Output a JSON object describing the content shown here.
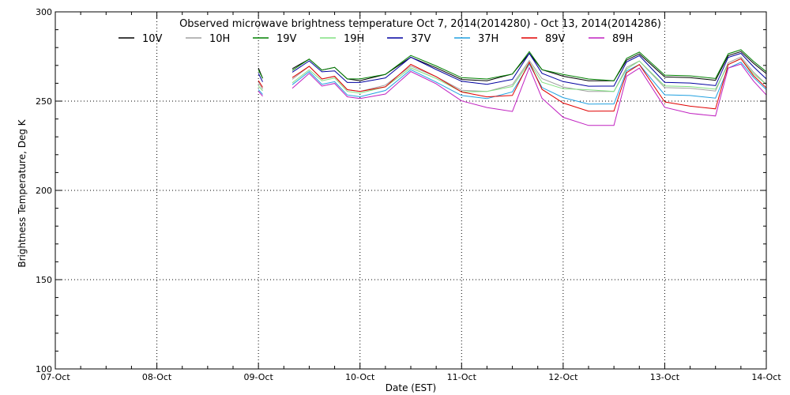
{
  "chart_data": {
    "type": "line",
    "title": "Observed microwave brightness temperature Oct  7, 2014(2014280) - Oct 13, 2014(2014286)",
    "xlabel": "Date (EST)",
    "ylabel": "Brightness Temperature, Deg K",
    "xlim": [
      "2014-10-07",
      "2014-10-14"
    ],
    "ylim": [
      100,
      300
    ],
    "x_ticks": [
      "07-Oct",
      "08-Oct",
      "09-Oct",
      "10-Oct",
      "11-Oct",
      "12-Oct",
      "13-Oct",
      "14-Oct"
    ],
    "y_ticks": [
      100,
      150,
      200,
      250,
      300
    ],
    "grid": "dotted, at major ticks",
    "legend": "top, single row",
    "series": [
      {
        "name": "10V",
        "color": "#000000",
        "x": [
          "2014-10-09 00:00",
          "2014-10-09 01:00",
          "2014-10-09 08:00",
          "2014-10-09 12:00",
          "2014-10-09 15:00",
          "2014-10-09 18:00",
          "2014-10-09 21:00",
          "2014-10-10 00:00",
          "2014-10-10 06:00",
          "2014-10-10 12:00",
          "2014-10-10 18:00",
          "2014-10-11 00:00",
          "2014-10-11 06:00",
          "2014-10-11 12:00",
          "2014-10-11 16:00",
          "2014-10-11 19:00",
          "2014-10-12 00:00",
          "2014-10-12 06:00",
          "2014-10-12 12:00",
          "2014-10-12 15:00",
          "2014-10-12 18:00",
          "2014-10-13 00:00",
          "2014-10-13 06:00",
          "2014-10-13 12:00",
          "2014-10-13 15:00",
          "2014-10-13 18:00",
          "2014-10-13 21:00",
          "2014-10-14 00:00"
        ],
        "y": [
          270,
          263,
          267,
          272,
          267,
          270,
          264,
          262,
          264,
          273,
          268,
          263,
          263,
          266,
          276,
          266,
          263,
          262,
          263,
          274,
          276,
          262,
          262,
          262,
          277,
          279,
          271,
          264
        ]
      },
      {
        "name": "10H",
        "color": "#a0a0a0",
        "x": [
          "2014-10-09 00:00",
          "2014-10-09 01:00",
          "2014-10-09 08:00",
          "2014-10-09 12:00",
          "2014-10-09 15:00",
          "2014-10-09 18:00",
          "2014-10-09 21:00",
          "2014-10-10 00:00",
          "2014-10-10 06:00",
          "2014-10-10 12:00",
          "2014-10-10 18:00",
          "2014-10-11 00:00",
          "2014-10-11 06:00",
          "2014-10-11 12:00",
          "2014-10-11 16:00",
          "2014-10-11 19:00",
          "2014-10-12 00:00",
          "2014-10-12 06:00",
          "2014-10-12 12:00",
          "2014-10-12 15:00",
          "2014-10-12 18:00",
          "2014-10-13 00:00",
          "2014-10-13 06:00",
          "2014-10-13 12:00",
          "2014-10-13 15:00",
          "2014-10-13 18:00",
          "2014-10-13 21:00",
          "2014-10-14 00:00"
        ],
        "y": [
          262,
          257,
          261,
          268,
          262,
          265,
          258,
          256,
          258,
          268,
          263,
          257,
          257,
          260,
          272,
          261,
          257,
          256,
          257,
          270,
          272,
          256,
          256,
          256,
          273,
          276,
          266,
          258
        ]
      },
      {
        "name": "19V",
        "color": "#008000",
        "x": [
          "2014-10-09 00:00",
          "2014-10-09 01:00",
          "2014-10-09 08:00",
          "2014-10-09 12:00",
          "2014-10-09 15:00",
          "2014-10-09 18:00",
          "2014-10-09 21:00",
          "2014-10-10 00:00",
          "2014-10-10 06:00",
          "2014-10-10 12:00",
          "2014-10-10 18:00",
          "2014-10-11 00:00",
          "2014-10-11 06:00",
          "2014-10-11 12:00",
          "2014-10-11 16:00",
          "2014-10-11 19:00",
          "2014-10-12 00:00",
          "2014-10-12 06:00",
          "2014-10-12 12:00",
          "2014-10-12 15:00",
          "2014-10-12 18:00",
          "2014-10-13 00:00",
          "2014-10-13 06:00",
          "2014-10-13 12:00",
          "2014-10-13 15:00",
          "2014-10-13 18:00",
          "2014-10-13 21:00",
          "2014-10-14 00:00"
        ],
        "y": [
          269,
          263,
          266,
          272,
          267,
          270,
          264,
          263,
          264,
          274,
          269,
          264,
          264,
          266,
          277,
          266,
          264,
          263,
          263,
          275,
          277,
          263,
          263,
          263,
          278,
          280,
          272,
          265
        ]
      },
      {
        "name": "19H",
        "color": "#80e080",
        "x": [
          "2014-10-09 00:00",
          "2014-10-09 01:00",
          "2014-10-09 08:00",
          "2014-10-09 12:00",
          "2014-10-09 15:00",
          "2014-10-09 18:00",
          "2014-10-09 21:00",
          "2014-10-10 00:00",
          "2014-10-10 06:00",
          "2014-10-10 12:00",
          "2014-10-10 18:00",
          "2014-10-11 00:00",
          "2014-10-11 06:00",
          "2014-10-11 12:00",
          "2014-10-11 16:00",
          "2014-10-11 19:00",
          "2014-10-12 00:00",
          "2014-10-12 06:00",
          "2014-10-12 12:00",
          "2014-10-12 15:00",
          "2014-10-12 18:00",
          "2014-10-13 00:00",
          "2014-10-13 06:00",
          "2014-10-13 12:00",
          "2014-10-13 15:00",
          "2014-10-13 18:00",
          "2014-10-13 21:00",
          "2014-10-14 00:00"
        ],
        "y": [
          260,
          256,
          259,
          266,
          261,
          264,
          257,
          255,
          257,
          267,
          262,
          256,
          257,
          259,
          271,
          259,
          256,
          257,
          257,
          269,
          272,
          257,
          257,
          257,
          272,
          275,
          265,
          258
        ]
      },
      {
        "name": "37V",
        "color": "#0000a0",
        "x": [
          "2014-10-09 00:00",
          "2014-10-09 01:00",
          "2014-10-09 08:00",
          "2014-10-09 12:00",
          "2014-10-09 15:00",
          "2014-10-09 18:00",
          "2014-10-09 21:00",
          "2014-10-10 00:00",
          "2014-10-10 06:00",
          "2014-10-10 12:00",
          "2014-10-10 18:00",
          "2014-10-11 00:00",
          "2014-10-11 06:00",
          "2014-10-11 12:00",
          "2014-10-11 16:00",
          "2014-10-11 19:00",
          "2014-10-12 00:00",
          "2014-10-12 06:00",
          "2014-10-12 12:00",
          "2014-10-12 15:00",
          "2014-10-12 18:00",
          "2014-10-13 00:00",
          "2014-10-13 06:00",
          "2014-10-13 12:00",
          "2014-10-13 15:00",
          "2014-10-13 18:00",
          "2014-10-13 21:00",
          "2014-10-14 00:00"
        ],
        "y": [
          267,
          261,
          265,
          271,
          266,
          268,
          262,
          261,
          262,
          273,
          267,
          262,
          261,
          263,
          276,
          264,
          260,
          259,
          260,
          273,
          275,
          259,
          259,
          259,
          276,
          278,
          269,
          261
        ]
      },
      {
        "name": "37H",
        "color": "#20a0e0",
        "x": [
          "2014-10-09 00:00",
          "2014-10-09 01:00",
          "2014-10-09 08:00",
          "2014-10-09 12:00",
          "2014-10-09 15:00",
          "2014-10-09 18:00",
          "2014-10-09 21:00",
          "2014-10-10 00:00",
          "2014-10-10 06:00",
          "2014-10-10 12:00",
          "2014-10-10 18:00",
          "2014-10-11 00:00",
          "2014-10-11 06:00",
          "2014-10-11 12:00",
          "2014-10-11 16:00",
          "2014-10-11 19:00",
          "2014-10-12 00:00",
          "2014-10-12 06:00",
          "2014-10-12 12:00",
          "2014-10-12 15:00",
          "2014-10-12 18:00",
          "2014-10-13 00:00",
          "2014-10-13 06:00",
          "2014-10-13 12:00",
          "2014-10-13 15:00",
          "2014-10-13 18:00",
          "2014-10-13 21:00",
          "2014-10-14 00:00"
        ],
        "y": [
          258,
          254,
          258,
          265,
          259,
          262,
          255,
          253,
          255,
          266,
          260,
          254,
          253,
          256,
          270,
          256,
          251,
          249,
          250,
          268,
          270,
          252,
          252,
          252,
          270,
          273,
          263,
          255
        ]
      },
      {
        "name": "89V",
        "color": "#e00000",
        "x": [
          "2014-10-09 00:00",
          "2014-10-09 01:00",
          "2014-10-09 08:00",
          "2014-10-09 12:00",
          "2014-10-09 15:00",
          "2014-10-09 18:00",
          "2014-10-09 21:00",
          "2014-10-10 00:00",
          "2014-10-10 06:00",
          "2014-10-10 12:00",
          "2014-10-10 18:00",
          "2014-10-11 00:00",
          "2014-10-11 06:00",
          "2014-10-11 12:00",
          "2014-10-11 16:00",
          "2014-10-11 19:00",
          "2014-10-12 00:00",
          "2014-10-12 06:00",
          "2014-10-12 12:00",
          "2014-10-12 15:00",
          "2014-10-12 18:00",
          "2014-10-13 00:00",
          "2014-10-13 06:00",
          "2014-10-13 12:00",
          "2014-10-13 15:00",
          "2014-10-13 18:00",
          "2014-10-13 21:00",
          "2014-10-14 00:00"
        ],
        "y": [
          263,
          258,
          262,
          268,
          262,
          265,
          258,
          256,
          257,
          269,
          263,
          256,
          254,
          254,
          271,
          255,
          248,
          245,
          246,
          267,
          270,
          248,
          246,
          246,
          272,
          275,
          264,
          256
        ]
      },
      {
        "name": "89H",
        "color": "#c020c0",
        "x": [
          "2014-10-09 00:00",
          "2014-10-09 01:00",
          "2014-10-09 08:00",
          "2014-10-09 12:00",
          "2014-10-09 15:00",
          "2014-10-09 18:00",
          "2014-10-09 21:00",
          "2014-10-10 00:00",
          "2014-10-10 06:00",
          "2014-10-10 12:00",
          "2014-10-10 18:00",
          "2014-10-11 00:00",
          "2014-10-11 06:00",
          "2014-10-11 12:00",
          "2014-10-11 16:00",
          "2014-10-11 19:00",
          "2014-10-12 00:00",
          "2014-10-12 06:00",
          "2014-10-12 12:00",
          "2014-10-12 15:00",
          "2014-10-12 18:00",
          "2014-10-13 00:00",
          "2014-10-13 06:00",
          "2014-10-13 12:00",
          "2014-10-13 15:00",
          "2014-10-13 18:00",
          "2014-10-13 21:00",
          "2014-10-14 00:00"
        ],
        "y": [
          257,
          253,
          256,
          264,
          258,
          261,
          254,
          252,
          253,
          265,
          259,
          251,
          248,
          245,
          268,
          250,
          240,
          237,
          238,
          265,
          268,
          245,
          242,
          242,
          270,
          272,
          261,
          252
        ]
      }
    ]
  }
}
